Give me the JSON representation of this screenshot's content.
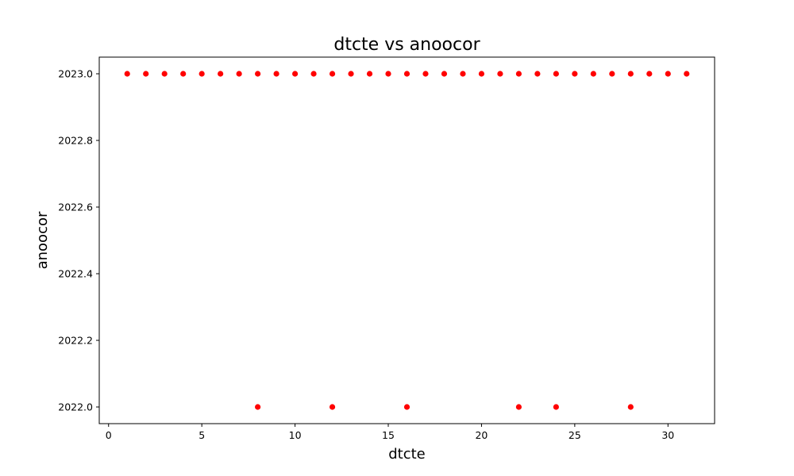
{
  "chart_data": {
    "type": "scatter",
    "title": "dtcte vs anoocor",
    "xlabel": "dtcte",
    "ylabel": "anoocor",
    "xlim": [
      -0.5,
      32.5
    ],
    "ylim": [
      2021.95,
      2023.05
    ],
    "x_ticks": [
      0,
      5,
      10,
      15,
      20,
      25,
      30
    ],
    "x_tick_labels": [
      "0",
      "5",
      "10",
      "15",
      "20",
      "25",
      "30"
    ],
    "y_ticks": [
      2022.0,
      2022.2,
      2022.4,
      2022.6,
      2022.8,
      2023.0
    ],
    "y_tick_labels": [
      "2022.0",
      "2022.2",
      "2022.4",
      "2022.6",
      "2022.8",
      "2023.0"
    ],
    "grid": false,
    "marker_color": "#ff0000",
    "points": [
      {
        "x": 1,
        "y": 2023
      },
      {
        "x": 2,
        "y": 2023
      },
      {
        "x": 3,
        "y": 2023
      },
      {
        "x": 4,
        "y": 2023
      },
      {
        "x": 5,
        "y": 2023
      },
      {
        "x": 6,
        "y": 2023
      },
      {
        "x": 7,
        "y": 2023
      },
      {
        "x": 8,
        "y": 2023
      },
      {
        "x": 9,
        "y": 2023
      },
      {
        "x": 10,
        "y": 2023
      },
      {
        "x": 11,
        "y": 2023
      },
      {
        "x": 12,
        "y": 2023
      },
      {
        "x": 13,
        "y": 2023
      },
      {
        "x": 14,
        "y": 2023
      },
      {
        "x": 15,
        "y": 2023
      },
      {
        "x": 16,
        "y": 2023
      },
      {
        "x": 17,
        "y": 2023
      },
      {
        "x": 18,
        "y": 2023
      },
      {
        "x": 19,
        "y": 2023
      },
      {
        "x": 20,
        "y": 2023
      },
      {
        "x": 21,
        "y": 2023
      },
      {
        "x": 22,
        "y": 2023
      },
      {
        "x": 23,
        "y": 2023
      },
      {
        "x": 24,
        "y": 2023
      },
      {
        "x": 25,
        "y": 2023
      },
      {
        "x": 26,
        "y": 2023
      },
      {
        "x": 27,
        "y": 2023
      },
      {
        "x": 28,
        "y": 2023
      },
      {
        "x": 29,
        "y": 2023
      },
      {
        "x": 30,
        "y": 2023
      },
      {
        "x": 31,
        "y": 2023
      },
      {
        "x": 8,
        "y": 2022
      },
      {
        "x": 12,
        "y": 2022
      },
      {
        "x": 16,
        "y": 2022
      },
      {
        "x": 22,
        "y": 2022
      },
      {
        "x": 24,
        "y": 2022
      },
      {
        "x": 28,
        "y": 2022
      }
    ]
  }
}
